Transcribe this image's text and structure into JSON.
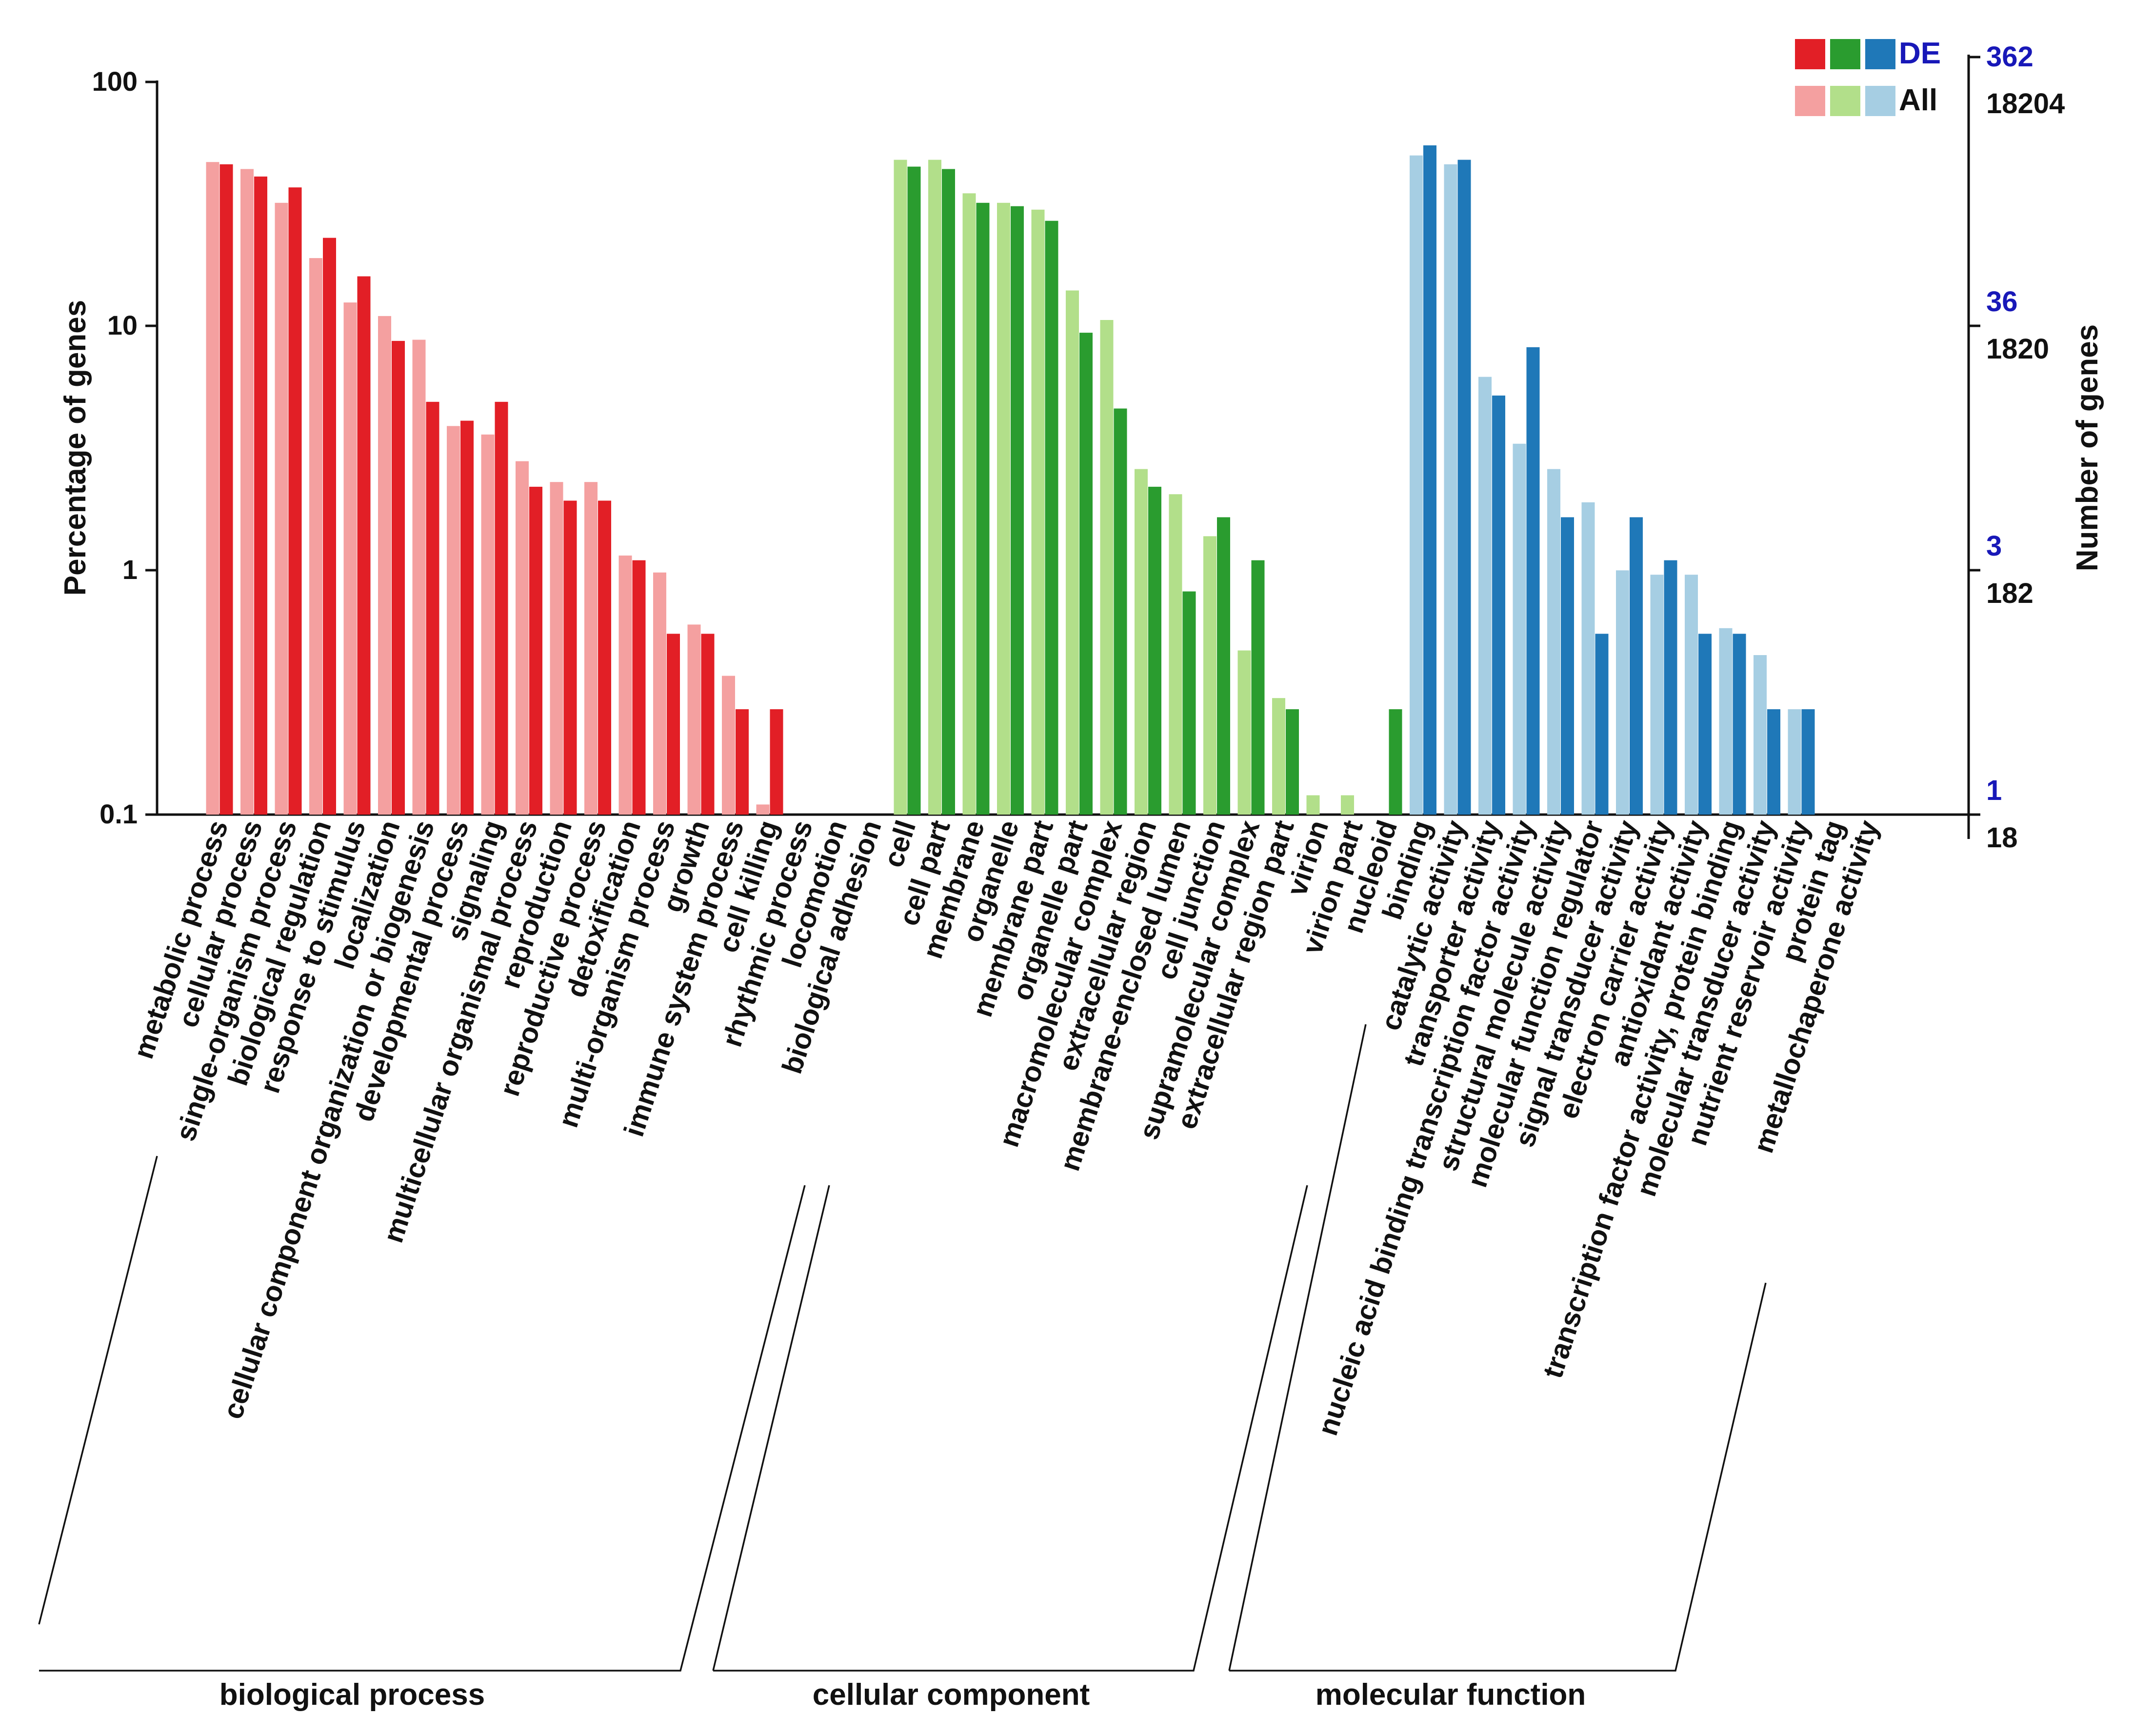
{
  "chart_data": {
    "type": "bar",
    "scale": "log",
    "ylabel": "Percentage of genes",
    "ylabel_right": "Number of genes",
    "ylim": [
      0.1,
      100
    ],
    "yticks_left": [
      "100",
      "10",
      "1",
      "0.1"
    ],
    "yticks_right_de": [
      "362",
      "36",
      "3",
      "1"
    ],
    "yticks_right_all": [
      "18204",
      "1820",
      "182",
      "18"
    ],
    "legend": {
      "de_label": "DE",
      "all_label": "All",
      "de_colors": [
        "#e21f26",
        "#2a9c2f",
        "#1f78b8"
      ],
      "all_colors": [
        "#f4a0a0",
        "#b2df8a",
        "#a6cee3"
      ]
    },
    "groups": [
      {
        "name": "biological process",
        "all_color": "#f4a0a0",
        "de_color": "#e21f26",
        "categories": [
          "metabolic process",
          "cellular process",
          "single-organism process",
          "biological regulation",
          "response to stimulus",
          "localization",
          "cellular component organization or biogenesis",
          "developmental process",
          "signaling",
          "multicellular organismal process",
          "reproduction",
          "reproductive process",
          "detoxification",
          "multi-organism process",
          "growth",
          "immune system process",
          "cell killing",
          "rhythmic process",
          "locomotion",
          "biological adhesion"
        ],
        "all": [
          47,
          44,
          32,
          19,
          12.5,
          11,
          8.8,
          3.9,
          3.6,
          2.8,
          2.3,
          2.3,
          1.15,
          0.98,
          0.6,
          0.37,
          0.11,
          0,
          0,
          0
        ],
        "de": [
          46,
          41,
          37,
          23,
          16,
          8.7,
          4.9,
          4.1,
          4.9,
          2.2,
          1.93,
          1.93,
          1.1,
          0.55,
          0.55,
          0.27,
          0.27,
          0,
          0,
          0
        ]
      },
      {
        "name": "cellular component",
        "all_color": "#b2df8a",
        "de_color": "#2a9c2f",
        "categories": [
          "cell",
          "cell part",
          "membrane",
          "organelle",
          "membrane part",
          "organelle part",
          "macromolecular complex",
          "extracellular region",
          "membrane-enclosed lumen",
          "cell junction",
          "supramolecular complex",
          "extracellular region part",
          "virion",
          "virion part",
          "nucleoid"
        ],
        "all": [
          48,
          48,
          35,
          32,
          30,
          14,
          10.6,
          2.6,
          2.05,
          1.38,
          0.47,
          0.3,
          0.12,
          0.12,
          0
        ],
        "de": [
          45,
          44,
          32,
          31,
          27,
          9.4,
          4.6,
          2.2,
          0.82,
          1.65,
          1.1,
          0.27,
          0,
          0,
          0.27
        ]
      },
      {
        "name": "molecular function",
        "all_color": "#a6cee3",
        "de_color": "#1f78b8",
        "categories": [
          "binding",
          "catalytic activity",
          "transporter activity",
          "nucleic acid binding transcription factor activity",
          "structural molecule activity",
          "molecular function regulator",
          "signal transducer activity",
          "electron carrier activity",
          "antioxidant activity",
          "transcription factor activity, protein binding",
          "molecular transducer activity",
          "nutrient reservoir activity",
          "protein tag",
          "metallochaperone activity"
        ],
        "all": [
          50,
          46,
          6.2,
          3.3,
          2.6,
          1.9,
          1.0,
          0.96,
          0.96,
          0.58,
          0.45,
          0.27,
          0,
          0
        ],
        "de": [
          55,
          48,
          5.2,
          8.2,
          1.65,
          0.55,
          1.65,
          1.1,
          0.55,
          0.55,
          0.27,
          0.27,
          0,
          0
        ]
      }
    ]
  }
}
